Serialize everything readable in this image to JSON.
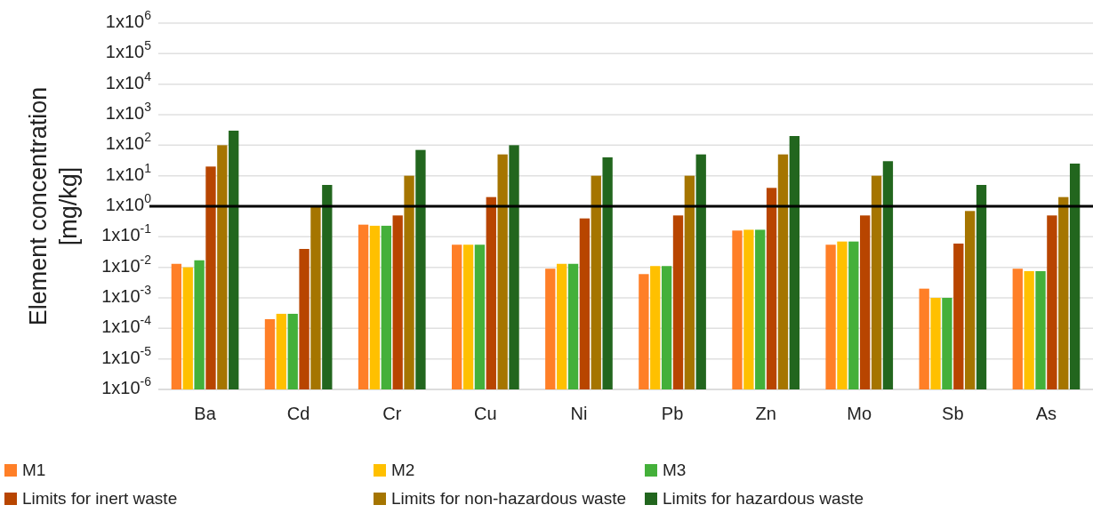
{
  "chart_data": {
    "type": "bar",
    "ylabel": "Element concentration [mg/kg]",
    "categories": [
      "Ba",
      "Cd",
      "Cr",
      "Cu",
      "Ni",
      "Pb",
      "Zn",
      "Mo",
      "Sb",
      "As"
    ],
    "series": [
      {
        "name": "M1",
        "color": "#ff7f27",
        "values": [
          0.013,
          0.0002,
          0.25,
          0.055,
          0.009,
          0.006,
          0.16,
          0.055,
          0.002,
          0.009
        ]
      },
      {
        "name": "M2",
        "color": "#ffc000",
        "values": [
          0.01,
          0.0003,
          0.23,
          0.055,
          0.013,
          0.011,
          0.17,
          0.07,
          0.001,
          0.0075
        ]
      },
      {
        "name": "M3",
        "color": "#44b03a",
        "values": [
          0.017,
          0.0003,
          0.23,
          0.055,
          0.013,
          0.011,
          0.17,
          0.07,
          0.001,
          0.0075
        ]
      },
      {
        "name": "Limits for inert waste",
        "color": "#b84500",
        "values": [
          20,
          0.04,
          0.5,
          2,
          0.4,
          0.5,
          4,
          0.5,
          0.06,
          0.5
        ]
      },
      {
        "name": "Limits for non-hazardous waste",
        "color": "#a57500",
        "values": [
          100,
          1,
          10,
          50,
          10,
          10,
          50,
          10,
          0.7,
          2
        ]
      },
      {
        "name": "Limits for hazardous waste",
        "color": "#22661e",
        "values": [
          300,
          5,
          70,
          100,
          40,
          50,
          200,
          30,
          5,
          25
        ]
      }
    ],
    "log": true,
    "ylim": [
      1e-06,
      1000000
    ],
    "yticks": [
      {
        "value": 1e-06,
        "label": "1x10$^{-6}$"
      },
      {
        "value": 1e-05,
        "label": "1x10$^{-5}$"
      },
      {
        "value": 0.0001,
        "label": "1x10$^{-4}$"
      },
      {
        "value": 0.001,
        "label": "1x10$^{-3}$"
      },
      {
        "value": 0.01,
        "label": "1x10$^{-2}$"
      },
      {
        "value": 0.1,
        "label": "1x10$^{-1}$"
      },
      {
        "value": 1,
        "label": "1x10$^{0}$"
      },
      {
        "value": 10,
        "label": "1x10$^{1}$"
      },
      {
        "value": 100,
        "label": "1x10$^{2}$"
      },
      {
        "value": 1000,
        "label": "1x10$^{3}$"
      },
      {
        "value": 10000,
        "label": "1x10$^{4}$"
      },
      {
        "value": 100000,
        "label": "1x10$^{5}$"
      },
      {
        "value": 1000000,
        "label": "1x10$^{6}$"
      }
    ],
    "grid": "y",
    "legend": "bottom",
    "ref_lines": [
      {
        "axis": "y",
        "value": 1,
        "color": "#000000"
      }
    ]
  }
}
